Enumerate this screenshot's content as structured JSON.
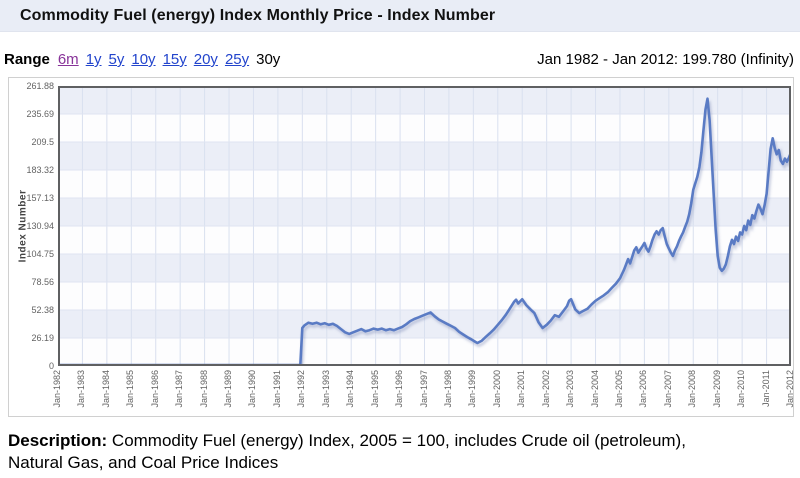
{
  "header": {
    "title": "Commodity Fuel (energy) Index Monthly Price - Index Number"
  },
  "range_bar": {
    "label": "Range",
    "options": [
      {
        "label": "6m",
        "state": "visited"
      },
      {
        "label": "1y",
        "state": "link"
      },
      {
        "label": "5y",
        "state": "link"
      },
      {
        "label": "10y",
        "state": "link"
      },
      {
        "label": "15y",
        "state": "link"
      },
      {
        "label": "20y",
        "state": "link"
      },
      {
        "label": "25y",
        "state": "link"
      },
      {
        "label": "30y",
        "state": "current"
      }
    ],
    "summary": "Jan 1982 - Jan 2012: 199.780 (Infinity)"
  },
  "chart_data": {
    "type": "line",
    "title": "Commodity Fuel (energy) Index Monthly Price",
    "ylabel": "Index Number",
    "xlabel": "",
    "ylim": [
      0,
      261.88
    ],
    "y_ticks": [
      {
        "value": 0,
        "label": "0"
      },
      {
        "value": 26.19,
        "label": "26.19"
      },
      {
        "value": 52.38,
        "label": "52.38"
      },
      {
        "value": 78.56,
        "label": "78.56"
      },
      {
        "value": 104.75,
        "label": "104.75"
      },
      {
        "value": 130.94,
        "label": "130.94"
      },
      {
        "value": 157.13,
        "label": "157.13"
      },
      {
        "value": 183.32,
        "label": "183.32"
      },
      {
        "value": 209.5,
        "label": "209.5"
      },
      {
        "value": 235.69,
        "label": "235.69"
      },
      {
        "value": 261.88,
        "label": "261.88"
      }
    ],
    "x_ticks": [
      "Jan-1982",
      "Jan-1983",
      "Jan-1984",
      "Jan-1985",
      "Jan-1986",
      "Jan-1987",
      "Jan-1988",
      "Jan-1989",
      "Jan-1990",
      "Jan-1991",
      "Jan-1992",
      "Jan-1993",
      "Jan-1994",
      "Jan-1995",
      "Jan-1996",
      "Jan-1997",
      "Jan-1998",
      "Jan-1999",
      "Jan-2000",
      "Jan-2001",
      "Jan-2002",
      "Jan-2003",
      "Jan-2004",
      "Jan-2005",
      "Jan-2006",
      "Jan-2007",
      "Jan-2008",
      "Jan-2009",
      "Jan-2010",
      "Jan-2011",
      "Jan-2012"
    ],
    "x_months_range": [
      0,
      360
    ],
    "points_format": "[months_since_Jan_1982, index_value]",
    "series": [
      {
        "name": "Index Number",
        "color": "#5a7bc4",
        "points": [
          [
            0,
            0.8
          ],
          [
            119,
            0.8
          ],
          [
            120,
            35.5
          ],
          [
            121,
            38
          ],
          [
            123,
            40.5
          ],
          [
            125,
            39.5
          ],
          [
            127,
            40.5
          ],
          [
            129,
            39
          ],
          [
            131,
            40
          ],
          [
            133,
            38.5
          ],
          [
            135,
            39.5
          ],
          [
            137,
            37.5
          ],
          [
            139,
            34.5
          ],
          [
            141,
            31.5
          ],
          [
            143,
            30
          ],
          [
            145,
            31.5
          ],
          [
            147,
            33
          ],
          [
            149,
            34.5
          ],
          [
            151,
            32.5
          ],
          [
            153,
            33.5
          ],
          [
            155,
            35
          ],
          [
            157,
            34
          ],
          [
            159,
            35
          ],
          [
            161,
            33.5
          ],
          [
            163,
            34.5
          ],
          [
            165,
            33.5
          ],
          [
            167,
            35
          ],
          [
            169,
            36.5
          ],
          [
            171,
            39
          ],
          [
            173,
            42
          ],
          [
            175,
            44
          ],
          [
            177,
            45.5
          ],
          [
            179,
            47
          ],
          [
            181,
            48.5
          ],
          [
            183,
            50
          ],
          [
            185,
            46.5
          ],
          [
            187,
            43.5
          ],
          [
            189,
            41.5
          ],
          [
            191,
            39.5
          ],
          [
            193,
            37.5
          ],
          [
            195,
            35.5
          ],
          [
            197,
            32
          ],
          [
            199,
            29.5
          ],
          [
            201,
            27
          ],
          [
            203,
            25
          ],
          [
            205,
            22.5
          ],
          [
            206,
            21.5
          ],
          [
            208,
            23.5
          ],
          [
            210,
            27
          ],
          [
            212,
            30.5
          ],
          [
            214,
            34
          ],
          [
            216,
            38.5
          ],
          [
            218,
            43
          ],
          [
            220,
            48
          ],
          [
            222,
            54
          ],
          [
            224,
            60
          ],
          [
            225,
            62
          ],
          [
            226,
            58.5
          ],
          [
            228,
            62.5
          ],
          [
            230,
            57
          ],
          [
            232,
            53
          ],
          [
            234,
            49.5
          ],
          [
            236,
            41
          ],
          [
            238,
            35.5
          ],
          [
            240,
            38.5
          ],
          [
            242,
            42.5
          ],
          [
            244,
            47.5
          ],
          [
            246,
            46
          ],
          [
            248,
            51
          ],
          [
            250,
            56
          ],
          [
            251,
            61
          ],
          [
            252,
            62.5
          ],
          [
            254,
            53
          ],
          [
            256,
            49.5
          ],
          [
            258,
            51.5
          ],
          [
            260,
            53.5
          ],
          [
            262,
            57.5
          ],
          [
            264,
            61
          ],
          [
            266,
            63.5
          ],
          [
            268,
            66
          ],
          [
            270,
            69
          ],
          [
            272,
            73
          ],
          [
            274,
            77
          ],
          [
            276,
            82
          ],
          [
            277,
            86
          ],
          [
            278,
            90
          ],
          [
            279,
            95
          ],
          [
            280,
            100
          ],
          [
            281,
            96
          ],
          [
            282,
            102
          ],
          [
            283,
            108
          ],
          [
            284,
            111
          ],
          [
            285,
            106
          ],
          [
            286,
            109
          ],
          [
            287,
            112
          ],
          [
            288,
            115
          ],
          [
            289,
            110
          ],
          [
            290,
            107
          ],
          [
            291,
            112
          ],
          [
            292,
            118
          ],
          [
            293,
            123
          ],
          [
            294,
            126
          ],
          [
            295,
            123
          ],
          [
            296,
            127
          ],
          [
            297,
            129
          ],
          [
            298,
            121
          ],
          [
            299,
            114
          ],
          [
            300,
            110
          ],
          [
            301,
            106
          ],
          [
            302,
            103
          ],
          [
            303,
            108
          ],
          [
            304,
            112
          ],
          [
            305,
            117
          ],
          [
            306,
            121
          ],
          [
            307,
            125
          ],
          [
            308,
            130
          ],
          [
            309,
            135
          ],
          [
            310,
            142
          ],
          [
            311,
            152
          ],
          [
            312,
            165
          ],
          [
            313,
            171
          ],
          [
            314,
            177
          ],
          [
            315,
            186
          ],
          [
            316,
            200
          ],
          [
            317,
            220
          ],
          [
            318,
            240
          ],
          [
            319,
            250
          ],
          [
            320,
            230
          ],
          [
            321,
            196
          ],
          [
            322,
            162
          ],
          [
            323,
            127
          ],
          [
            324,
            103
          ],
          [
            325,
            92
          ],
          [
            326,
            89
          ],
          [
            327,
            91
          ],
          [
            328,
            95
          ],
          [
            329,
            103
          ],
          [
            330,
            112
          ],
          [
            331,
            118
          ],
          [
            332,
            114
          ],
          [
            333,
            121
          ],
          [
            334,
            117
          ],
          [
            335,
            125
          ],
          [
            336,
            123
          ],
          [
            337,
            131
          ],
          [
            338,
            127
          ],
          [
            339,
            136
          ],
          [
            340,
            132
          ],
          [
            341,
            141
          ],
          [
            342,
            138
          ],
          [
            343,
            145
          ],
          [
            344,
            151
          ],
          [
            345,
            147
          ],
          [
            346,
            142
          ],
          [
            347,
            150
          ],
          [
            348,
            161
          ],
          [
            349,
            182
          ],
          [
            350,
            203
          ],
          [
            351,
            213
          ],
          [
            352,
            204
          ],
          [
            353,
            198
          ],
          [
            354,
            202
          ],
          [
            355,
            192
          ],
          [
            356,
            189
          ],
          [
            357,
            194
          ],
          [
            358,
            191
          ],
          [
            359,
            195
          ],
          [
            360,
            199.78
          ]
        ]
      }
    ],
    "grid": true,
    "legend_position": "none",
    "last_value": "199.780",
    "colors": {
      "band_light": "#ebeef7",
      "band_white": "#fdfdfe",
      "grid_vertical": "#d9e0ef",
      "grid_horizontal": "#dfe4f1",
      "frame": "#5f6062",
      "line_shadow": "rgba(100,115,165,0.35)"
    }
  },
  "description": {
    "label": "Description:",
    "text": " Commodity Fuel (energy) Index, 2005 = 100, includes Crude oil (petroleum), Natural Gas, and Coal Price Indices"
  }
}
